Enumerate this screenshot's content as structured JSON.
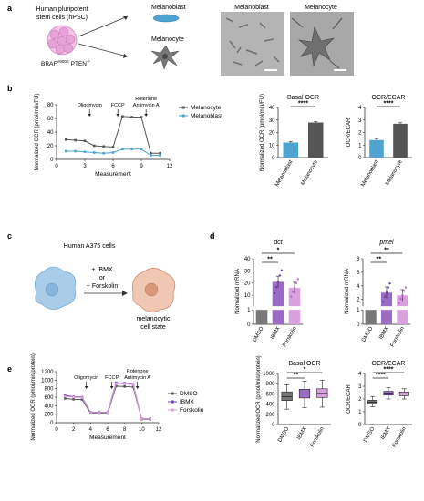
{
  "panel_letters": [
    "a",
    "b",
    "c",
    "d",
    "e"
  ],
  "panel_a": {
    "cells_label_1": "Human pluripotent",
    "cells_label_2": "stem cells (hPSC)",
    "genotype_1": "BRAF",
    "genotype_sup": "V600E",
    "genotype_2": " PTEN",
    "genotype_sup2": "-/-",
    "arrow_top_label": "Melanoblast",
    "arrow_bottom_label": "Melanocyte",
    "micro_left_title": "Melanoblast",
    "micro_right_title": "Melanocyte",
    "scale_bar": "50 μm"
  },
  "panel_c": {
    "title": "Human A375 cells",
    "treatment_1": "+ IBMX",
    "treatment_2": "or",
    "treatment_3": "+ Forskolin",
    "result_1": "melanocytic",
    "result_2": "cell state"
  },
  "chart_data": [
    {
      "id": "b-ocr",
      "type": "line",
      "xlabel": "Measurement",
      "ylabel": "Normalized OCR (pmol/min/FU)",
      "xlim": [
        0,
        12
      ],
      "ylim": [
        0,
        80
      ],
      "xticks": [
        0,
        3,
        6,
        9,
        12
      ],
      "yticks": [
        0,
        20,
        40,
        60,
        80
      ],
      "annotations": [
        "Oligomycin",
        "FCCP",
        "Rotenone",
        "Antimycin A"
      ],
      "annotation_x": [
        3.5,
        6.5,
        9.5
      ],
      "legend_position": "top-right",
      "series": [
        {
          "name": "Melanocyte",
          "color": "#555555",
          "x": [
            1,
            2,
            3,
            4,
            5,
            6,
            7,
            8,
            9,
            10,
            11
          ],
          "y": [
            29,
            28,
            27,
            20,
            19,
            18,
            63,
            62,
            62,
            9,
            9
          ]
        },
        {
          "name": "Melanoblast",
          "color": "#4fa3d1",
          "x": [
            1,
            2,
            3,
            4,
            5,
            6,
            7,
            8,
            9,
            10,
            11
          ],
          "y": [
            12,
            12,
            11,
            10,
            9,
            10,
            15,
            15,
            15,
            6,
            6
          ]
        }
      ]
    },
    {
      "id": "b-basal",
      "type": "bar",
      "title": "Basal OCR",
      "ylabel": "Normalized OCR (pmol/min/FU)",
      "categories": [
        "Melanoblast",
        "Melanocyte"
      ],
      "values": [
        12,
        28
      ],
      "ylim": [
        0,
        40
      ],
      "yticks": [
        0,
        10,
        20,
        30,
        40
      ],
      "colors": [
        "#4fa3d1",
        "#555555"
      ],
      "significance": "****"
    },
    {
      "id": "b-ratio",
      "type": "bar",
      "title": "OCR/ECAR",
      "ylabel": "OCR/ECAR",
      "categories": [
        "Melanoblast",
        "Melanocyte"
      ],
      "values": [
        1.4,
        2.7
      ],
      "ylim": [
        0,
        4
      ],
      "yticks": [
        0,
        1,
        2,
        3,
        4
      ],
      "colors": [
        "#4fa3d1",
        "#555555"
      ],
      "significance": "****"
    },
    {
      "id": "d-dct",
      "type": "bar",
      "title": "dct",
      "ylabel": "Normalized mRNA",
      "categories": [
        "DMSO",
        "IBMX",
        "Forskolin"
      ],
      "values": [
        1,
        21,
        16
      ],
      "yticks": [
        0,
        1,
        10,
        20,
        30,
        40
      ],
      "colors": [
        "#777777",
        "#9b6bc4",
        "#d9a0de"
      ],
      "significance": [
        "**",
        "*"
      ]
    },
    {
      "id": "d-pmel",
      "type": "bar",
      "title": "pmel",
      "ylabel": "Normalized mRNA",
      "categories": [
        "DMSO",
        "IBMX",
        "Forskolin"
      ],
      "values": [
        1,
        3,
        2.6
      ],
      "yticks": [
        0,
        1,
        2,
        4,
        6,
        8
      ],
      "colors": [
        "#777777",
        "#9b6bc4",
        "#d9a0de"
      ],
      "significance": [
        "**",
        "**"
      ]
    },
    {
      "id": "e-ocr",
      "type": "line",
      "xlabel": "Measurement",
      "ylabel": "Normalized OCR (pmol/min/protein)",
      "xlim": [
        0,
        12
      ],
      "ylim": [
        0,
        1200
      ],
      "xticks": [
        0,
        2,
        4,
        6,
        8,
        10,
        12
      ],
      "yticks": [
        0,
        200,
        400,
        600,
        800,
        1000,
        1200
      ],
      "annotations": [
        "Oligomycin",
        "FCCP",
        "Rotenone",
        "Antimycin A"
      ],
      "annotation_x": [
        3.5,
        6.5,
        9.5
      ],
      "legend_position": "top-right",
      "series": [
        {
          "name": "DMSO",
          "color": "#555555",
          "x": [
            1,
            2,
            3,
            4,
            5,
            6,
            7,
            8,
            9,
            10,
            11
          ],
          "y": [
            570,
            550,
            545,
            220,
            215,
            215,
            860,
            850,
            840,
            80,
            80
          ]
        },
        {
          "name": "IBMX",
          "color": "#6a3fb0",
          "x": [
            1,
            2,
            3,
            4,
            5,
            6,
            7,
            8,
            9,
            10,
            11
          ],
          "y": [
            640,
            610,
            600,
            250,
            245,
            245,
            940,
            930,
            915,
            95,
            95
          ]
        },
        {
          "name": "Forskolin",
          "color": "#d9a0de",
          "x": [
            1,
            2,
            3,
            4,
            5,
            6,
            7,
            8,
            9,
            10,
            11
          ],
          "y": [
            620,
            600,
            590,
            240,
            235,
            235,
            920,
            910,
            900,
            90,
            90
          ]
        }
      ]
    },
    {
      "id": "e-basal",
      "type": "box",
      "title": "Basal OCR",
      "ylabel": "Normalized OCR (pmol/min/protein)",
      "categories": [
        "DMSO",
        "IBMX",
        "Forskolin"
      ],
      "ylim": [
        0,
        1000
      ],
      "yticks": [
        0,
        200,
        400,
        600,
        800,
        1000
      ],
      "boxes": [
        {
          "min": 300,
          "q1": 470,
          "median": 545,
          "q3": 640,
          "max": 780
        },
        {
          "min": 330,
          "q1": 520,
          "median": 600,
          "q3": 690,
          "max": 850
        },
        {
          "min": 340,
          "q1": 530,
          "median": 610,
          "q3": 700,
          "max": 870
        }
      ],
      "colors": [
        "#777777",
        "#9b6bc4",
        "#d9a0de"
      ],
      "significance": [
        "**",
        "*"
      ]
    },
    {
      "id": "e-ratio",
      "type": "box",
      "title": "OCR/ECAR",
      "ylabel": "OCR/ECAR",
      "categories": [
        "DMSO",
        "IBMX",
        "Forskolin"
      ],
      "ylim": [
        0,
        4
      ],
      "yticks": [
        0,
        1,
        2,
        3,
        4
      ],
      "boxes": [
        {
          "min": 1.4,
          "q1": 1.6,
          "median": 1.75,
          "q3": 1.9,
          "max": 2.2
        },
        {
          "min": 2.0,
          "q1": 2.3,
          "median": 2.45,
          "q3": 2.6,
          "max": 2.9
        },
        {
          "min": 2.0,
          "q1": 2.25,
          "median": 2.4,
          "q3": 2.55,
          "max": 2.8
        }
      ],
      "colors": [
        "#777777",
        "#9b6bc4",
        "#d9a0de"
      ],
      "significance": [
        "****",
        "****"
      ]
    }
  ]
}
